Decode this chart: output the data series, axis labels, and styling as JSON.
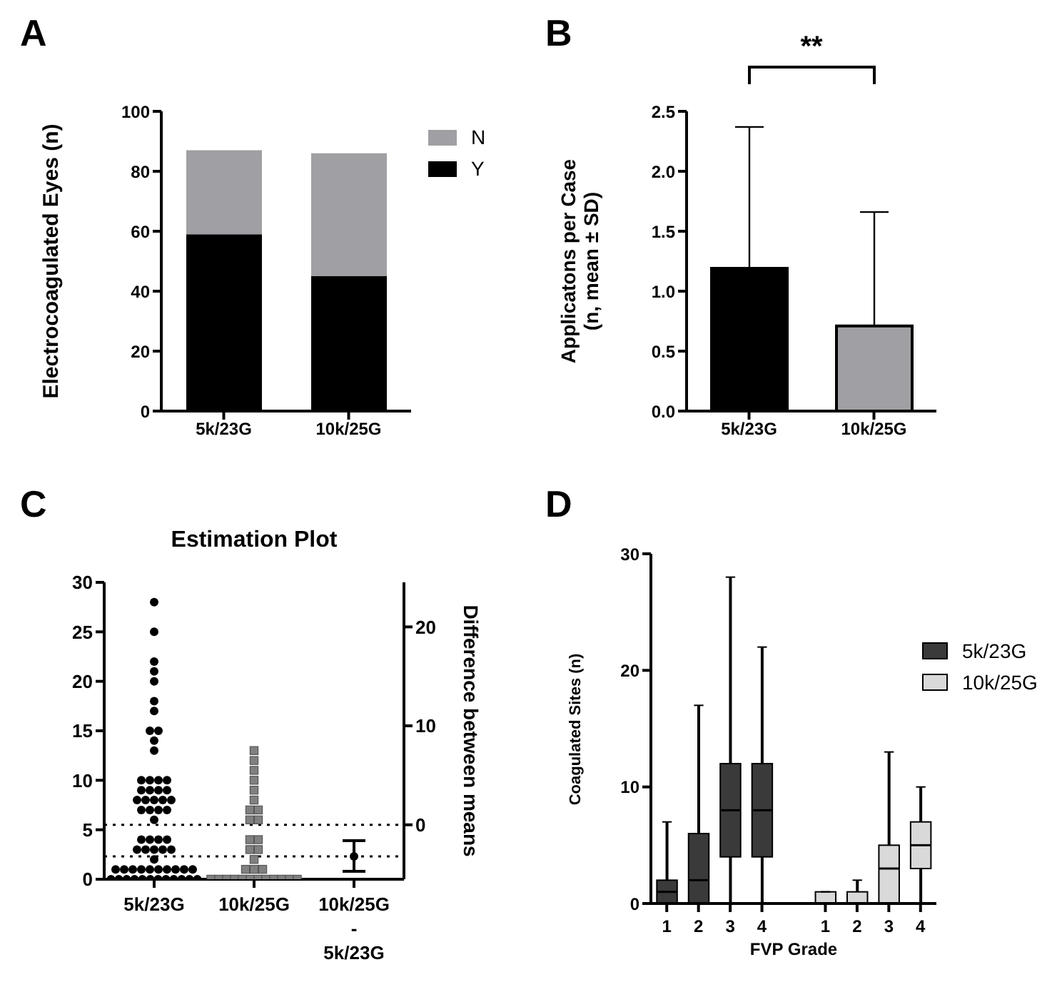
{
  "chart_data": [
    {
      "type": "bar",
      "stacked": true,
      "annotations": [
        "A"
      ],
      "ylabel": "Electrocoagulated Eyes (n)",
      "categories": [
        "5k/23G",
        "10k/25G"
      ],
      "series": [
        {
          "name": "Y",
          "color": "#000000",
          "values": [
            59,
            45
          ]
        },
        {
          "name": "N",
          "color": "#a0a0a4",
          "values": [
            28,
            41
          ]
        }
      ],
      "ylim": [
        0,
        100
      ],
      "yticks": [
        0,
        20,
        40,
        60,
        80,
        100
      ],
      "legend": "right",
      "grid": false
    },
    {
      "type": "bar",
      "annotations": [
        "B",
        "**"
      ],
      "ylabel": "Applicatons per Case\n(n, mean ± SD)",
      "categories": [
        "5k/23G",
        "10k/25G"
      ],
      "values": [
        1.19,
        0.71
      ],
      "colors": [
        "#000000",
        "#a0a0a4"
      ],
      "errors": [
        [
          1.19,
          2.37
        ],
        [
          0.71,
          1.66
        ]
      ],
      "ylim": [
        0,
        2.5
      ],
      "yticks": [
        {
          "value": 0,
          "label": "0.0"
        },
        {
          "value": 0.5,
          "label": "0.5"
        },
        {
          "value": 1,
          "label": "1.0"
        },
        {
          "value": 1.5,
          "label": "1.5"
        },
        {
          "value": 2,
          "label": "2.0"
        },
        {
          "value": 2.5,
          "label": "2.5"
        }
      ],
      "grid": false
    },
    {
      "type": "scatter",
      "annotations": [
        "C"
      ],
      "title": "Estimation Plot",
      "y2label": "Difference between means",
      "categories": [
        "5k/23G",
        "10k/25G",
        "10k/25G\n-\n5k/23G"
      ],
      "series": [
        {
          "color": "#000000",
          "marker": "circle",
          "x": [
            "5k/23G",
            "5k/23G",
            "5k/23G",
            "5k/23G",
            "5k/23G",
            "5k/23G",
            "5k/23G",
            "5k/23G",
            "5k/23G",
            "5k/23G",
            "5k/23G",
            "5k/23G",
            "5k/23G",
            "5k/23G",
            "5k/23G",
            "5k/23G",
            "5k/23G",
            "5k/23G",
            "5k/23G",
            "5k/23G",
            "5k/23G",
            "5k/23G",
            "5k/23G",
            "5k/23G",
            "5k/23G",
            "5k/23G",
            "5k/23G",
            "5k/23G",
            "5k/23G",
            "5k/23G",
            "5k/23G",
            "5k/23G",
            "5k/23G",
            "5k/23G",
            "5k/23G",
            "5k/23G",
            "5k/23G",
            "5k/23G",
            "5k/23G",
            "5k/23G",
            "5k/23G",
            "5k/23G",
            "5k/23G",
            "5k/23G",
            "5k/23G",
            "5k/23G",
            "5k/23G",
            "5k/23G",
            "5k/23G",
            "5k/23G",
            "5k/23G",
            "5k/23G",
            "5k/23G",
            "5k/23G",
            "5k/23G",
            "5k/23G",
            "5k/23G",
            "5k/23G",
            "5k/23G",
            "5k/23G",
            "5k/23G"
          ],
          "values": [
            28,
            25,
            22,
            21,
            20,
            18,
            17,
            15,
            15,
            14,
            13,
            10,
            10,
            10,
            10,
            9,
            9,
            9,
            9,
            8,
            8,
            8,
            8,
            8,
            7,
            7,
            7,
            7,
            6,
            4,
            4,
            4,
            4,
            3,
            3,
            3,
            3,
            3,
            2,
            1,
            1,
            1,
            1,
            1,
            1,
            1,
            1,
            1,
            1,
            0,
            0,
            0,
            0,
            0,
            0,
            0,
            0,
            0,
            0,
            0,
            0
          ]
        },
        {
          "color": "#808080",
          "marker": "square",
          "x": [
            "10k/25G",
            "10k/25G",
            "10k/25G",
            "10k/25G",
            "10k/25G",
            "10k/25G",
            "10k/25G",
            "10k/25G",
            "10k/25G",
            "10k/25G",
            "10k/25G",
            "10k/25G",
            "10k/25G",
            "10k/25G",
            "10k/25G",
            "10k/25G",
            "10k/25G",
            "10k/25G",
            "10k/25G",
            "10k/25G",
            "10k/25G",
            "10k/25G",
            "10k/25G",
            "10k/25G",
            "10k/25G",
            "10k/25G",
            "10k/25G",
            "10k/25G",
            "10k/25G",
            "10k/25G"
          ],
          "values": [
            13,
            12,
            11,
            10,
            9,
            8,
            7,
            7,
            6,
            6,
            4,
            4,
            3,
            3,
            2,
            1,
            1,
            1,
            0,
            0,
            0,
            0,
            0,
            0,
            0,
            0,
            0,
            0,
            0,
            0
          ]
        },
        {
          "color": "#000000",
          "marker": "circle",
          "axis": "y2",
          "x": [
            "10k/25G\n-\n5k/23G"
          ],
          "values": [
            -3.2
          ],
          "errors": [
            [
              -4.7,
              -1.6
            ]
          ]
        }
      ],
      "ylim": [
        0,
        30
      ],
      "yticks": [
        0,
        5,
        10,
        15,
        20,
        25,
        30
      ],
      "y2lim": [
        -5.5,
        24.5
      ],
      "y2ticks": [
        0,
        10,
        20
      ],
      "ref_lines": [
        {
          "axis": "y",
          "value": 5.5,
          "line_style": "dotted"
        },
        {
          "axis": "y",
          "value": 2.3,
          "line_style": "dotted"
        }
      ],
      "grid": false
    },
    {
      "type": "box",
      "annotations": [
        "D"
      ],
      "xlabel": "FVP Grade",
      "ylabel": "Coagulated Sites (n)",
      "categories": [
        "1",
        "2",
        "3",
        "4",
        "1",
        "2",
        "3",
        "4"
      ],
      "series": [
        {
          "name": "5k/23G",
          "color": "#3a3a3a",
          "boxes": [
            {
              "low": 0,
              "q1": 0,
              "median": 1,
              "q3": 2,
              "high": 7
            },
            {
              "low": 0,
              "q1": 0,
              "median": 2,
              "q3": 6,
              "high": 17
            },
            {
              "low": 0,
              "q1": 4,
              "median": 8,
              "q3": 12,
              "high": 28
            },
            {
              "low": 0,
              "q1": 4,
              "median": 8,
              "q3": 12,
              "high": 22
            },
            null,
            null,
            null,
            null
          ]
        },
        {
          "name": "10k/25G",
          "color": "#d9d9d9",
          "boxes": [
            null,
            null,
            null,
            null,
            {
              "low": 0,
              "q1": 0,
              "median": 0,
              "q3": 1,
              "high": 1
            },
            {
              "low": 0,
              "q1": 0,
              "median": 0,
              "q3": 1,
              "high": 2
            },
            {
              "low": 0,
              "q1": 0,
              "median": 3,
              "q3": 5,
              "high": 13
            },
            {
              "low": 0,
              "q1": 3,
              "median": 5,
              "q3": 7,
              "high": 10
            }
          ]
        }
      ],
      "ylim": [
        0,
        30
      ],
      "yticks": [
        0,
        10,
        20,
        30
      ],
      "legend": "right",
      "grid": false
    }
  ]
}
